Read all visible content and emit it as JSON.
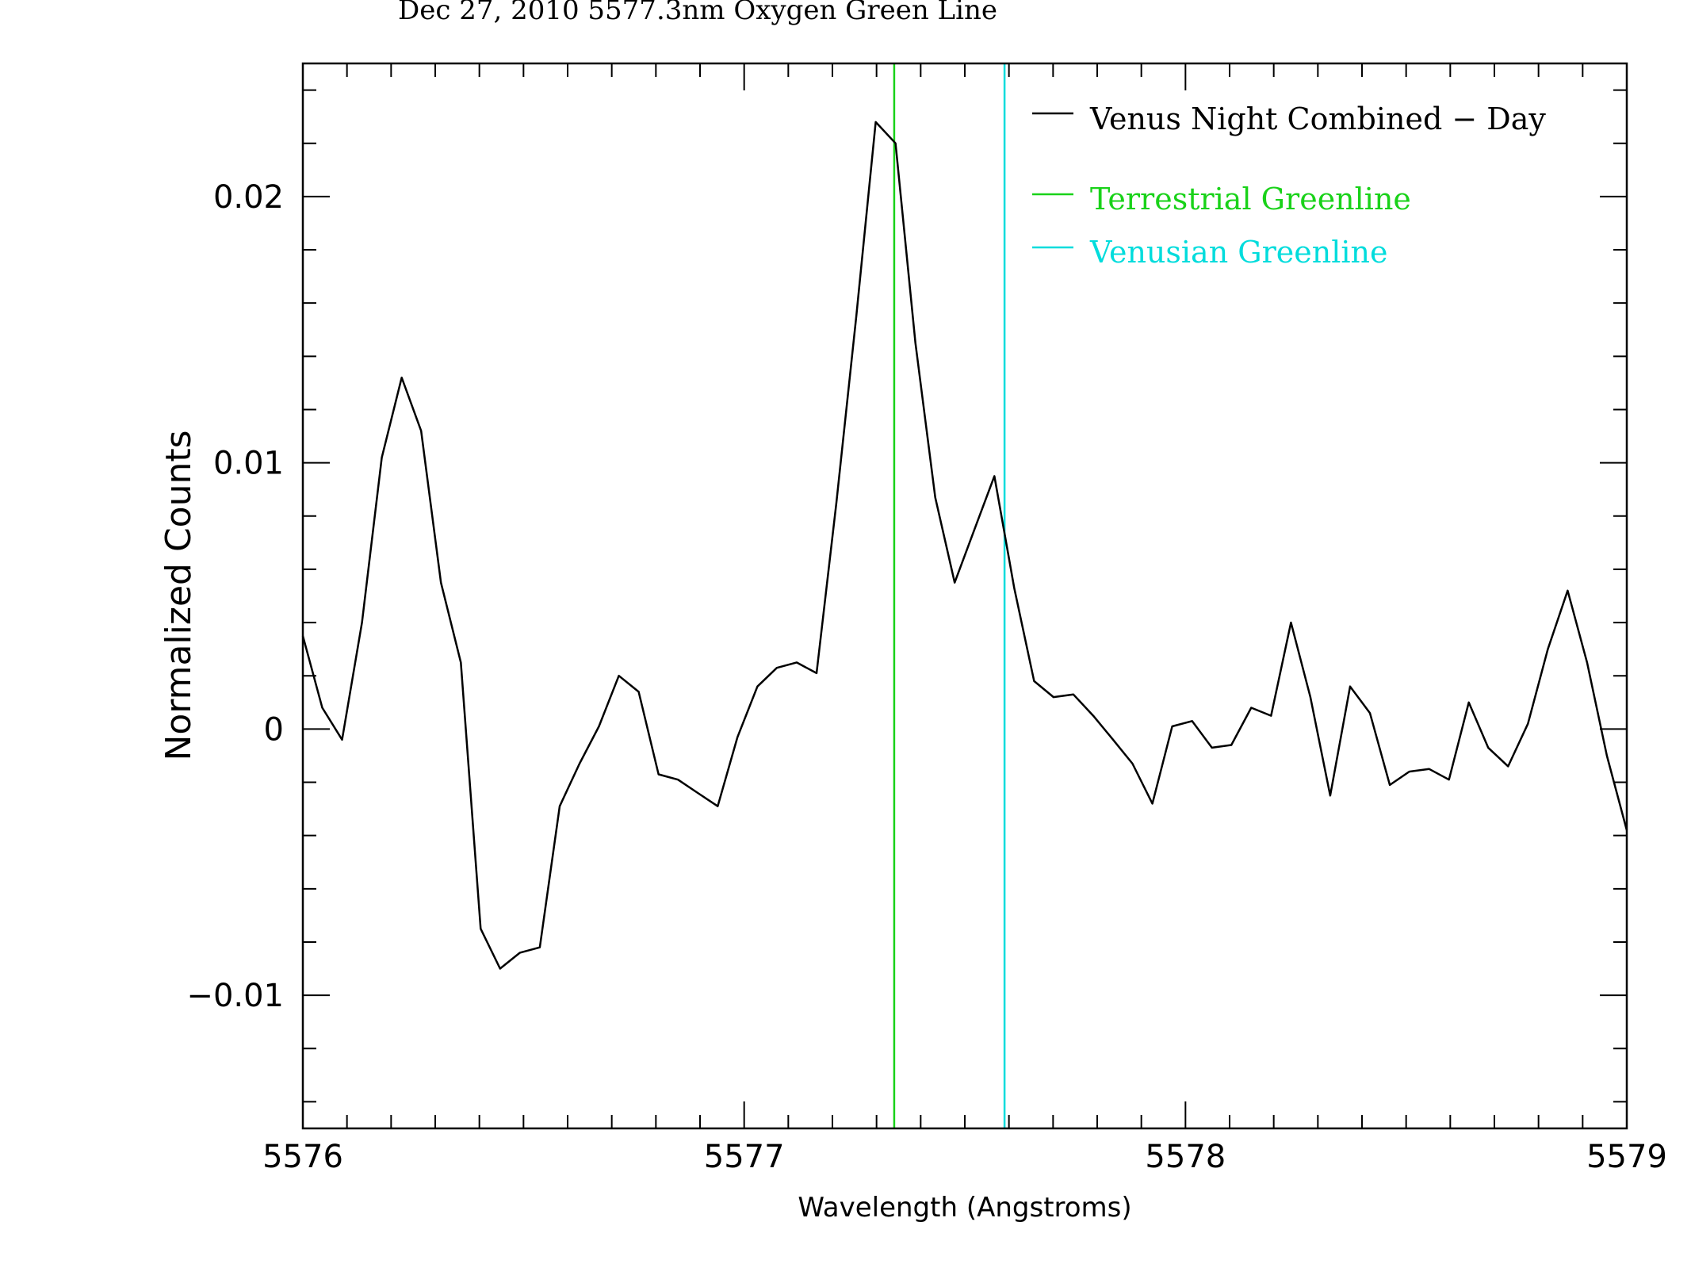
{
  "chart_data": {
    "type": "line",
    "title": "Dec 27, 2010 5577.3nm Oxygen Green Line",
    "xlabel": "Wavelength (Angstroms)",
    "ylabel": "Normalized Counts",
    "xlim": [
      5576,
      5579
    ],
    "ylim": [
      -0.015,
      0.025
    ],
    "x_ticks": [
      5576,
      5577,
      5578,
      5579
    ],
    "x_tick_labels": [
      "5576",
      "5577",
      "5578",
      "5579"
    ],
    "y_ticks": [
      -0.01,
      0,
      0.01,
      0.02
    ],
    "y_tick_labels": [
      "−0.01",
      "0",
      "0.01",
      "0.02"
    ],
    "grid": false,
    "legend_position": "top-right",
    "series": [
      {
        "name": "Venus Night Combined − Day",
        "color": "#000000",
        "x": [
          5576.0,
          5576.044,
          5576.089,
          5576.134,
          5576.179,
          5576.224,
          5576.268,
          5576.313,
          5576.358,
          5576.403,
          5576.447,
          5576.492,
          5576.537,
          5576.582,
          5576.627,
          5576.671,
          5576.716,
          5576.761,
          5576.806,
          5576.85,
          5576.895,
          5576.94,
          5576.985,
          5577.03,
          5577.074,
          5577.119,
          5577.164,
          5577.209,
          5577.254,
          5577.298,
          5577.343,
          5577.388,
          5577.433,
          5577.477,
          5577.522,
          5577.567,
          5577.612,
          5577.657,
          5577.701,
          5577.746,
          5577.791,
          5577.836,
          5577.88,
          5577.925,
          5577.97,
          5578.015,
          5578.06,
          5578.104,
          5578.149,
          5578.194,
          5578.239,
          5578.283,
          5578.328,
          5578.373,
          5578.418,
          5578.463,
          5578.507,
          5578.552,
          5578.597,
          5578.642,
          5578.686,
          5578.731,
          5578.776,
          5578.821,
          5578.866,
          5578.91,
          5578.955,
          5579.0
        ],
        "y": [
          0.0035,
          0.0008,
          -0.0004,
          0.004,
          0.0102,
          0.0132,
          0.0112,
          0.0055,
          0.0025,
          -0.0075,
          -0.009,
          -0.0084,
          -0.0082,
          -0.0029,
          -0.0013,
          0.0001,
          0.002,
          0.0014,
          -0.0017,
          -0.0019,
          -0.0024,
          -0.0029,
          -0.0003,
          0.0016,
          0.0023,
          0.0025,
          0.0021,
          0.0085,
          0.0155,
          0.0228,
          0.022,
          0.0145,
          0.0087,
          0.0055,
          0.0075,
          0.0095,
          0.0053,
          0.0018,
          0.0012,
          0.0013,
          0.0005,
          -0.0004,
          -0.0013,
          -0.0028,
          0.0001,
          0.0003,
          -0.0007,
          -0.0006,
          0.0008,
          0.0005,
          0.004,
          0.0012,
          -0.0025,
          0.0016,
          0.0006,
          -0.0021,
          -0.0016,
          -0.0015,
          -0.0019,
          0.001,
          -0.0007,
          -0.0014,
          0.0002,
          0.003,
          0.0052,
          0.0025,
          -0.001,
          -0.0038
        ]
      }
    ],
    "reference_lines": [
      {
        "name": "Terrestrial Greenline",
        "x": 5577.34,
        "color": "#19d219"
      },
      {
        "name": "Venusian Greenline",
        "x": 5577.59,
        "color": "#00dcdc"
      }
    ]
  }
}
